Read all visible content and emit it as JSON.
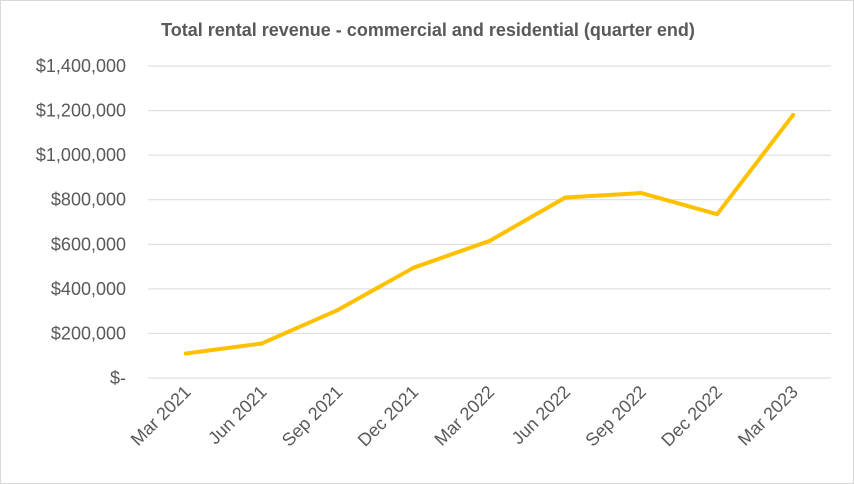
{
  "chart_data": {
    "type": "line",
    "title": "Total rental revenue - commercial and residential (quarter end)",
    "xlabel": "",
    "ylabel": "",
    "categories": [
      "Mar 2021",
      "Jun 2021",
      "Sep 2021",
      "Dec 2021",
      "Mar 2022",
      "Jun 2022",
      "Sep 2022",
      "Dec 2022",
      "Mar 2023"
    ],
    "series": [
      {
        "values": [
          110000,
          155000,
          305000,
          495000,
          615000,
          810000,
          830000,
          735000,
          1180000
        ]
      }
    ],
    "ylim": [
      0,
      1400000
    ],
    "yticks": [
      {
        "value": 0,
        "label": "$-"
      },
      {
        "value": 200000,
        "label": "$200,000"
      },
      {
        "value": 400000,
        "label": "$400,000"
      },
      {
        "value": 600000,
        "label": "$600,000"
      },
      {
        "value": 800000,
        "label": "$800,000"
      },
      {
        "value": 1000000,
        "label": "$1,000,000"
      },
      {
        "value": 1200000,
        "label": "$1,200,000"
      },
      {
        "value": 1400000,
        "label": "$1,400,000"
      }
    ],
    "grid": true,
    "legend": "none",
    "line_color": "#FFC000"
  }
}
